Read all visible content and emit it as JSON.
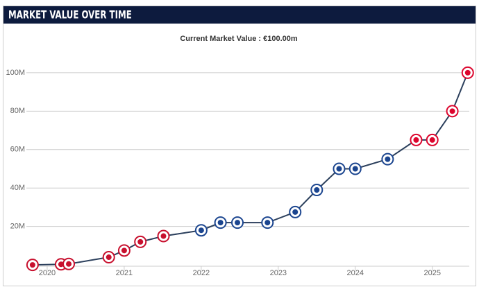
{
  "chart_data": {
    "type": "line",
    "title": "MARKET VALUE OVER TIME",
    "subtitle": "Current Market Value : €100.00m",
    "x": [
      2019.81,
      2020.18,
      2020.28,
      2020.8,
      2021.0,
      2021.21,
      2021.51,
      2022.0,
      2022.25,
      2022.47,
      2022.86,
      2023.22,
      2023.5,
      2023.79,
      2024.0,
      2024.42,
      2024.79,
      2025.0,
      2025.26,
      2025.46
    ],
    "series": [
      {
        "color": "#2b3f5c",
        "values": [
          0,
          0.3,
          0.5,
          4,
          7.5,
          12,
          15,
          18,
          22,
          22,
          22,
          27.5,
          39,
          50,
          50,
          55,
          65,
          65,
          80,
          100
        ],
        "point_colors": [
          "#c8102e",
          "#c8102e",
          "#c8102e",
          "#c8102e",
          "#c8102e",
          "#c8102e",
          "#c8102e",
          "#1b458f",
          "#1b458f",
          "#1b458f",
          "#1b458f",
          "#1b458f",
          "#1b458f",
          "#1b458f",
          "#1b458f",
          "#1b458f",
          "#dc052d",
          "#dc052d",
          "#dc052d",
          "#dc052d"
        ]
      }
    ],
    "xlim": [
      2019.73,
      2025.48
    ],
    "xticks": [
      2020,
      2021,
      2022,
      2023,
      2024,
      2025
    ],
    "ylim": [
      -5,
      105
    ],
    "yticks": [
      {
        "value": 20,
        "label": "20M"
      },
      {
        "value": 40,
        "label": "40M"
      },
      {
        "value": 60,
        "label": "60M"
      },
      {
        "value": 80,
        "label": "80M"
      },
      {
        "value": 100,
        "label": "100M"
      }
    ],
    "grid": true
  }
}
